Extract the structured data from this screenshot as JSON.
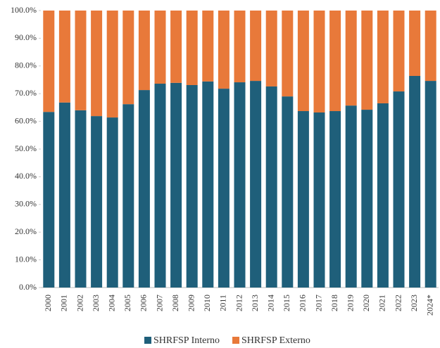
{
  "chart_data": {
    "type": "stacked_bar",
    "categories": [
      "2000",
      "2001",
      "2002",
      "2003",
      "2004",
      "2005",
      "2006",
      "2007",
      "2008",
      "2009",
      "2010",
      "2011",
      "2012",
      "2013",
      "2014",
      "2015",
      "2016",
      "2017",
      "2018",
      "2019",
      "2020",
      "2021",
      "2022",
      "2023",
      "2024*"
    ],
    "series": [
      {
        "name": "SHRFSP Interno",
        "color": "#1f5f7a",
        "values": [
          63.4,
          66.8,
          64.0,
          61.9,
          61.4,
          66.2,
          71.3,
          73.6,
          73.9,
          73.1,
          74.4,
          71.8,
          74.1,
          74.6,
          72.6,
          69.0,
          63.7,
          63.2,
          63.7,
          65.7,
          64.2,
          66.5,
          70.8,
          76.4,
          74.6
        ]
      },
      {
        "name": "SHRFSP Externo",
        "color": "#e8793a",
        "values": [
          36.6,
          33.2,
          36.0,
          38.1,
          38.6,
          33.8,
          28.7,
          26.4,
          26.1,
          26.9,
          25.6,
          28.2,
          25.9,
          25.4,
          27.4,
          31.0,
          36.3,
          36.8,
          36.3,
          34.3,
          35.8,
          33.5,
          29.2,
          23.6,
          25.4
        ]
      }
    ],
    "ylim": [
      0,
      100
    ],
    "yticks": [
      {
        "value": 0,
        "label": "0.0%"
      },
      {
        "value": 10,
        "label": "10.0%"
      },
      {
        "value": 20,
        "label": "20.0%"
      },
      {
        "value": 30,
        "label": "30.0%"
      },
      {
        "value": 40,
        "label": "40.0%"
      },
      {
        "value": 50,
        "label": "50.0%"
      },
      {
        "value": 60,
        "label": "60.0%"
      },
      {
        "value": 70,
        "label": "70.0%"
      },
      {
        "value": 80,
        "label": "80.0%"
      },
      {
        "value": 90,
        "label": "90.0%"
      },
      {
        "value": 100,
        "label": "100.0%"
      }
    ],
    "legend": "bottom"
  }
}
